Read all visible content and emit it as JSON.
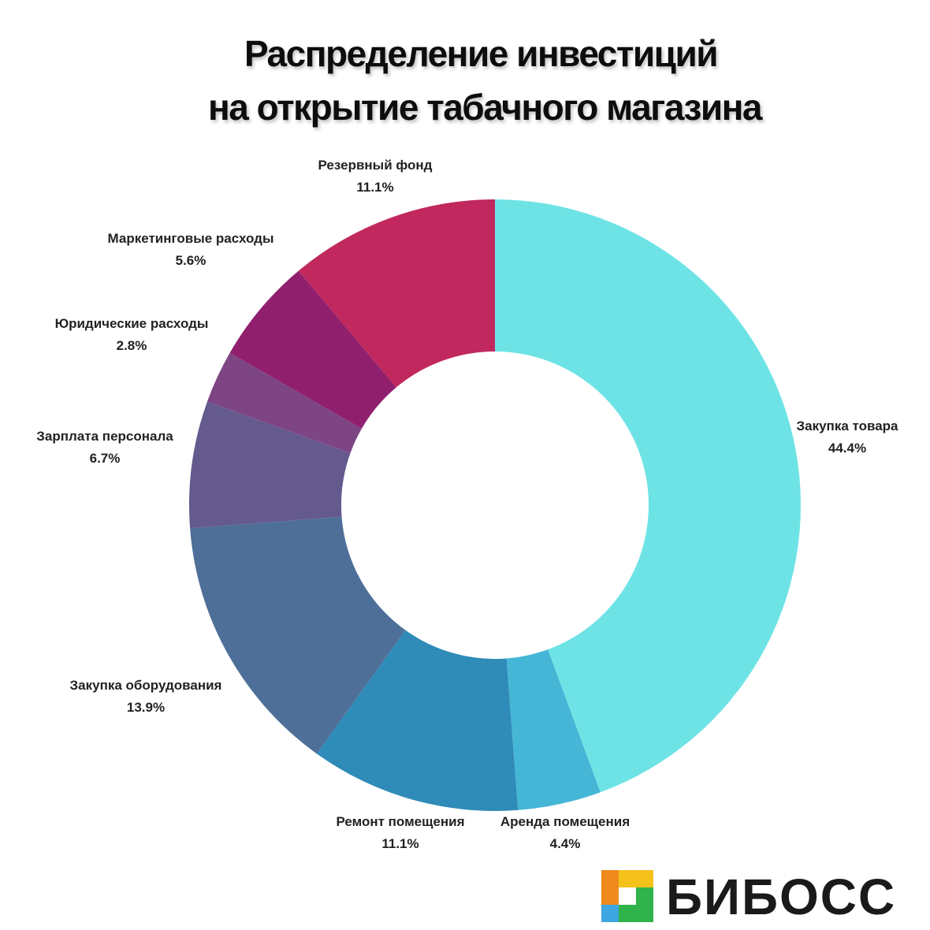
{
  "chart_data": {
    "type": "donut",
    "title": [
      "Распределение инвестиций",
      "на открытие табачного магазина"
    ],
    "categories": [
      "Закупка товара",
      "Аренда помещения",
      "Ремонт помещения",
      "Закупка оборудования",
      "Зарплата персонала",
      "Юридические расходы",
      "Маркетинговые расходы",
      "Резервный фонд"
    ],
    "values": [
      44.4,
      4.4,
      11.1,
      13.9,
      6.7,
      2.8,
      5.6,
      11.1
    ],
    "value_labels": [
      "44.4%",
      "4.4%",
      "11.1%",
      "13.9%",
      "6.7%",
      "2.8%",
      "5.6%",
      "11.1%"
    ],
    "colors": [
      "#6ee3e6",
      "#45b6d6",
      "#2f8bb8",
      "#4e6f98",
      "#655a8e",
      "#7e4585",
      "#90206e",
      "#c0285e"
    ]
  },
  "brand": "БИБОСС"
}
